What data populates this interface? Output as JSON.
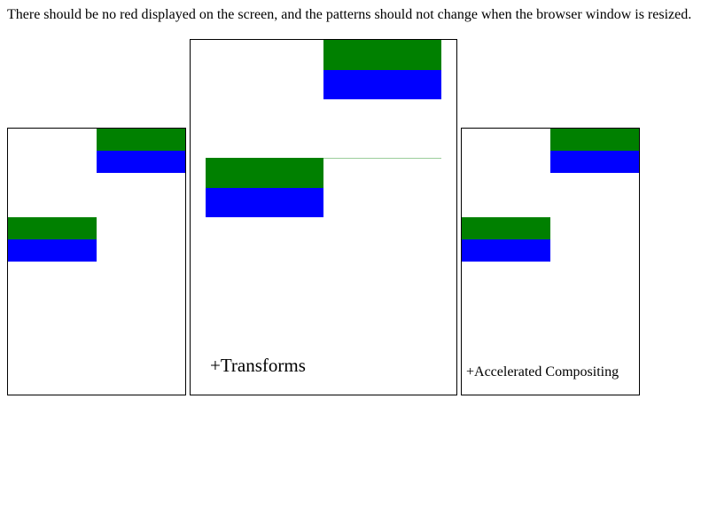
{
  "instruction_text": "There should be no red displayed on the screen, and the patterns should not change when the browser window is resized.",
  "panels": {
    "left": {
      "label": ""
    },
    "middle": {
      "label": "+Transforms"
    },
    "right": {
      "label": "+Accelerated Compositing"
    }
  },
  "colors": {
    "green": "#008000",
    "blue": "#0000ff",
    "border": "#000000",
    "background": "#ffffff"
  }
}
